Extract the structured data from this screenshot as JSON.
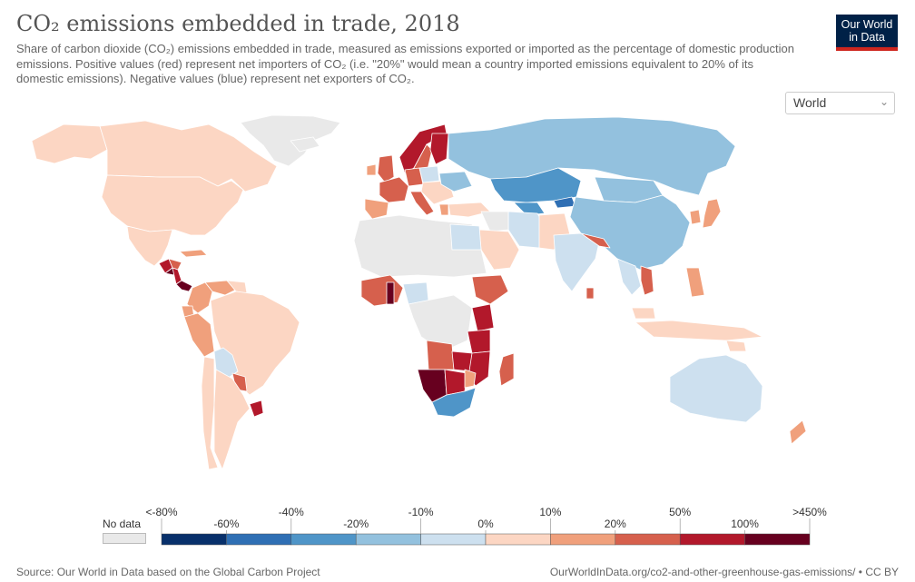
{
  "header": {
    "title": "CO₂ emissions embedded in trade, 2018",
    "subtitle": "Share of carbon dioxide (CO₂) emissions embedded in trade, measured as emissions exported or imported as the percentage of domestic production emissions. Positive values (red) represent net importers of CO₂ (i.e. \"20%\" would mean a country imported emissions equivalent to 20% of its domestic emissions). Negative values (blue) represent net exporters of CO₂."
  },
  "logo": {
    "line1": "Our World",
    "line2": "in Data"
  },
  "region_select": {
    "value": "World"
  },
  "legend": {
    "no_data_label": "No data",
    "no_data_color": "#e9e9e9",
    "bins": [
      {
        "label_start": "<-80%",
        "label_end": "-60%",
        "color": "#08306b"
      },
      {
        "label_start": "-60%",
        "label_end": "-40%",
        "color": "#2f6fb4"
      },
      {
        "label_start": "-40%",
        "label_end": "-20%",
        "color": "#4f95c8"
      },
      {
        "label_start": "-20%",
        "label_end": "-10%",
        "color": "#93c1de"
      },
      {
        "label_start": "-10%",
        "label_end": "0%",
        "color": "#cde0ef"
      },
      {
        "label_start": "0%",
        "label_end": "10%",
        "color": "#fcd6c3"
      },
      {
        "label_start": "10%",
        "label_end": "20%",
        "color": "#f0a07c"
      },
      {
        "label_start": "20%",
        "label_end": "50%",
        "color": "#d6604d"
      },
      {
        "label_start": "50%",
        "label_end": "100%",
        "color": "#b2182b"
      },
      {
        "label_start": "100%",
        "label_end": ">450%",
        "color": "#67001f"
      }
    ],
    "tick_labels": [
      "<-80%",
      "-60%",
      "-40%",
      "-20%",
      "-10%",
      "0%",
      "10%",
      "20%",
      "50%",
      "100%",
      ">450%"
    ]
  },
  "footer": {
    "source": "Source: Our World in Data based on the Global Carbon Project",
    "link": "OurWorldInData.org/co2-and-other-greenhouse-gas-emissions/ • CC BY"
  }
}
